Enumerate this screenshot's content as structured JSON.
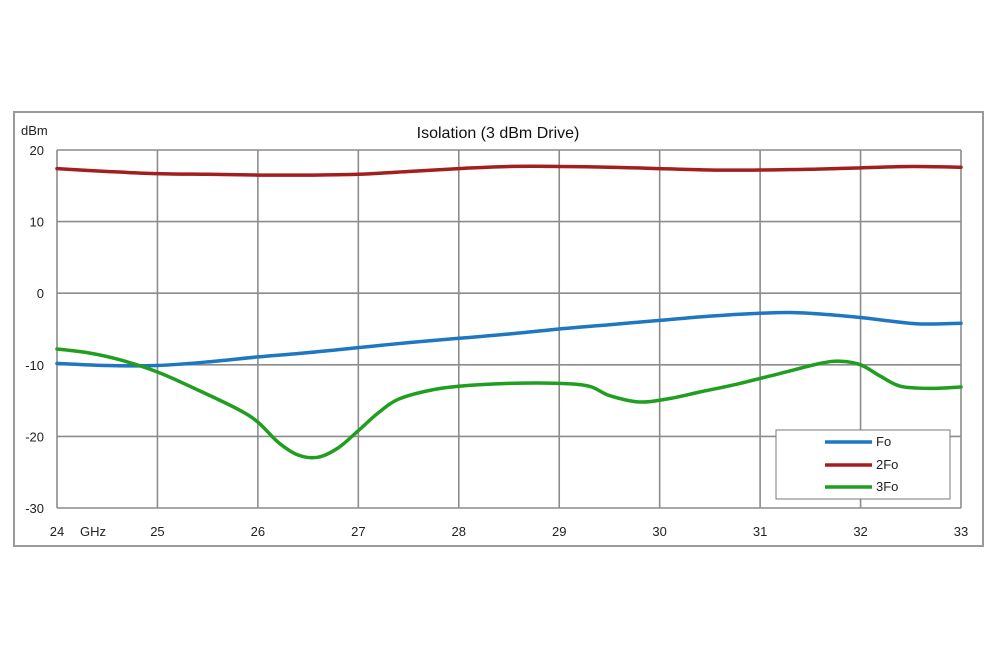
{
  "chart_data": {
    "type": "line",
    "title": "Isolation (3 dBm Drive)",
    "y_unit": "dBm",
    "x_unit": "GHz",
    "xlim": [
      24,
      33
    ],
    "ylim": [
      -30,
      20
    ],
    "x_ticks": [
      24,
      25,
      26,
      27,
      28,
      29,
      30,
      31,
      32,
      33
    ],
    "y_ticks": [
      20,
      10,
      0,
      -10,
      -20,
      -30
    ],
    "grid": true,
    "legend_position": "bottom-right",
    "series": [
      {
        "name": "Fo",
        "color": "#1f77c1",
        "x": [
          24,
          24.5,
          25,
          25.5,
          26,
          26.5,
          27,
          27.5,
          28,
          28.5,
          29,
          29.5,
          30,
          30.5,
          31,
          31.3,
          31.6,
          32,
          32.3,
          32.6,
          33
        ],
        "y": [
          -9.8,
          -10.1,
          -10.1,
          -9.6,
          -8.9,
          -8.3,
          -7.6,
          -6.9,
          -6.3,
          -5.7,
          -5.0,
          -4.4,
          -3.8,
          -3.2,
          -2.8,
          -2.7,
          -2.9,
          -3.4,
          -3.9,
          -4.3,
          -4.2
        ]
      },
      {
        "name": "2Fo",
        "color": "#a31f1f",
        "x": [
          24,
          24.5,
          25,
          25.5,
          26,
          26.5,
          27,
          27.5,
          28,
          28.5,
          29,
          29.5,
          30,
          30.5,
          31,
          31.5,
          32,
          32.5,
          33
        ],
        "y": [
          17.4,
          17.0,
          16.7,
          16.6,
          16.5,
          16.5,
          16.6,
          17.0,
          17.4,
          17.7,
          17.7,
          17.6,
          17.4,
          17.2,
          17.2,
          17.3,
          17.5,
          17.7,
          17.6
        ]
      },
      {
        "name": "3Fo",
        "color": "#1f9e1f",
        "x": [
          24,
          24.3,
          24.6,
          25,
          25.4,
          25.8,
          26,
          26.2,
          26.4,
          26.6,
          26.8,
          27,
          27.2,
          27.4,
          27.7,
          28,
          28.5,
          29,
          29.3,
          29.5,
          29.8,
          30.1,
          30.4,
          30.8,
          31.2,
          31.6,
          31.8,
          32,
          32.2,
          32.4,
          32.7,
          33
        ],
        "y": [
          -7.8,
          -8.3,
          -9.2,
          -11.0,
          -13.5,
          -16.2,
          -18.0,
          -20.8,
          -22.6,
          -22.9,
          -21.6,
          -19.2,
          -16.7,
          -14.8,
          -13.6,
          -13.0,
          -12.6,
          -12.6,
          -13.0,
          -14.3,
          -15.2,
          -14.7,
          -13.8,
          -12.6,
          -11.2,
          -9.8,
          -9.5,
          -10.0,
          -11.6,
          -13.0,
          -13.3,
          -13.1
        ]
      }
    ]
  }
}
